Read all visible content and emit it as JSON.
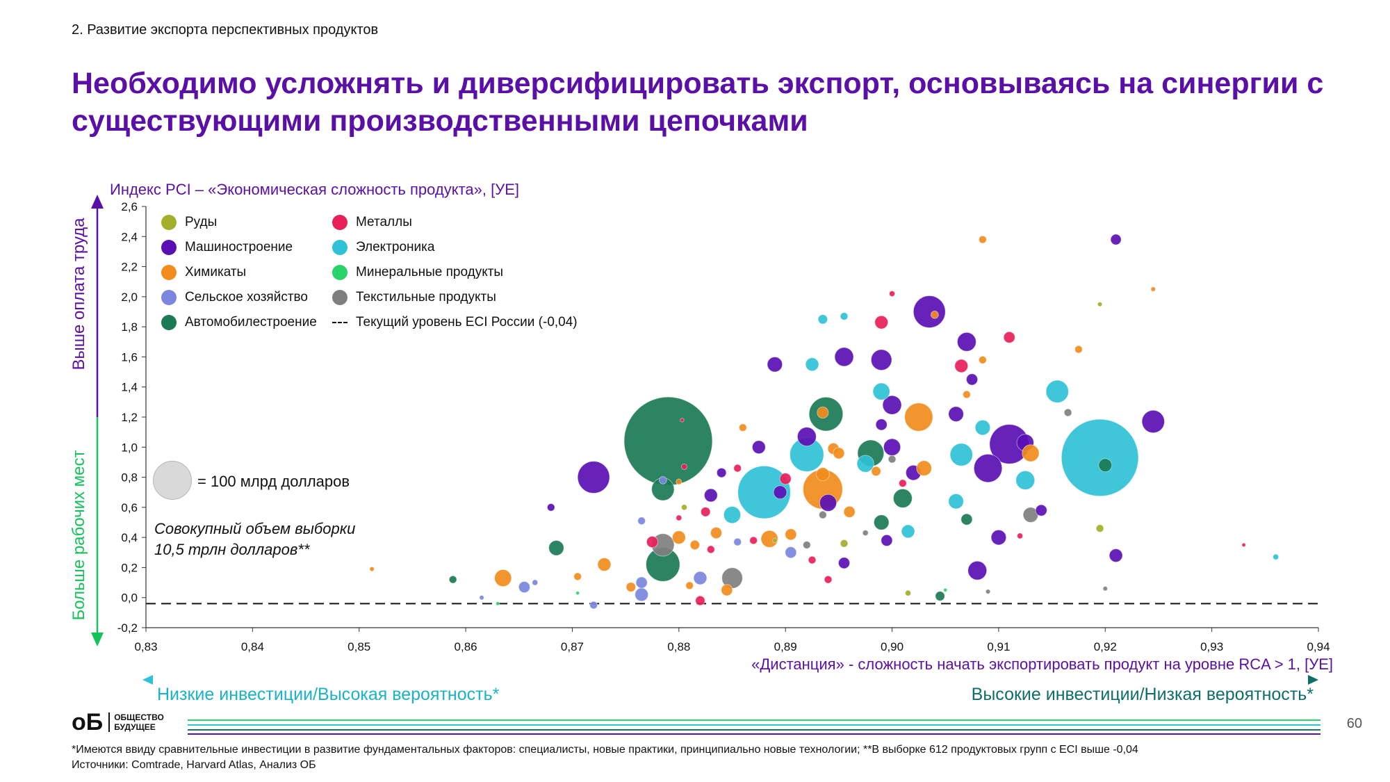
{
  "section": "2. Развитие экспорта перспективных продуктов",
  "title": "Необходимо усложнять и диверсифицировать экспорт, основываясь на синергии с существующими производственными цепочками",
  "side_top": "Выше оплата труда",
  "side_bottom": "Больше рабочих мест",
  "low_investment": "Низкие инвестиции/Высокая вероятность*",
  "high_investment": "Высокие инвестиции/Низкая вероятность*",
  "size_key_label": "= 100 млрд долларов",
  "sample_line1": "Совокупный объем выборки",
  "sample_line2": "10,5 трлн долларов**",
  "logo": {
    "mark": "оБ",
    "line1": "ОБЩЕСТВО",
    "line2": "БУДУЩЕЕ"
  },
  "page_number": "60",
  "footnote1": "*Имеются ввиду сравнительные инвестиции в развитие фундаментальных факторов: специалисты, новые практики, принципиально новые технологии; **В выборке 612 продуктовых групп с ECI выше -0,04",
  "footnote2": "Источники: Comtrade, Harvard Atlas, Анализ ОБ",
  "legend": [
    {
      "label": "Руды",
      "color": "#a3ae2a"
    },
    {
      "label": "Машиностроение",
      "color": "#5a0fb4"
    },
    {
      "label": "Химикаты",
      "color": "#f28c1c"
    },
    {
      "label": "Сельское хозяйство",
      "color": "#7b86dc"
    },
    {
      "label": "Автомобилестроение",
      "color": "#1a7a56"
    },
    {
      "label": "Металлы",
      "color": "#e8205a"
    },
    {
      "label": "Электроника",
      "color": "#2fc1d6"
    },
    {
      "label": "Минеральные продукты",
      "color": "#27d36a"
    },
    {
      "label": "Текстильные продукты",
      "color": "#7f7f7f"
    },
    {
      "label": "Текущий уровень ECI России (-0,04)",
      "color": "#111111"
    }
  ],
  "chart_data": {
    "type": "scatter",
    "subtype": "bubble",
    "title": "",
    "xlabel": "«Дистанция» - сложность начать экспортировать продукт на уровне RCA > 1, [УЕ]",
    "ylabel": "Индекс PCI – «Экономическая сложность продукта», [УЕ]",
    "xlim": [
      0.83,
      0.94
    ],
    "ylim": [
      -0.2,
      2.6
    ],
    "xticks": [
      "0,83",
      "0,84",
      "0,85",
      "0,86",
      "0,87",
      "0,88",
      "0,89",
      "0,90",
      "0,91",
      "0,92",
      "0,93",
      "0,94"
    ],
    "yticks": [
      "-0,2",
      "0,0",
      "0,2",
      "0,4",
      "0,6",
      "0,8",
      "1,0",
      "1,2",
      "1,4",
      "1,6",
      "1,8",
      "2,0",
      "2,2",
      "2,4",
      "2,6"
    ],
    "reference_line": {
      "y": -0.04,
      "label": "Текущий уровень ECI России (-0,04)"
    },
    "size_unit": "radius relative to 100 млрд долларов bubble",
    "series": [
      {
        "name": "Автомобилестроение",
        "color": "#1a7a56",
        "points": [
          [
            0.879,
            1.04,
            2.35
          ],
          [
            0.8785,
            0.72,
            0.6
          ],
          [
            0.8785,
            0.22,
            0.9
          ],
          [
            0.8938,
            1.22,
            0.9
          ],
          [
            0.898,
            0.96,
            0.7
          ],
          [
            0.901,
            0.66,
            0.5
          ],
          [
            0.899,
            0.5,
            0.4
          ],
          [
            0.8685,
            0.33,
            0.4
          ],
          [
            0.907,
            0.52,
            0.3
          ],
          [
            0.92,
            0.88,
            0.35
          ],
          [
            0.8588,
            0.12,
            0.2
          ],
          [
            0.9045,
            0.01,
            0.25
          ]
        ]
      },
      {
        "name": "Электроника",
        "color": "#2fc1d6",
        "points": [
          [
            0.9195,
            0.93,
            2.05
          ],
          [
            0.888,
            0.7,
            1.4
          ],
          [
            0.892,
            0.95,
            0.9
          ],
          [
            0.9155,
            1.37,
            0.6
          ],
          [
            0.9125,
            0.78,
            0.5
          ],
          [
            0.899,
            1.37,
            0.45
          ],
          [
            0.8925,
            1.55,
            0.35
          ],
          [
            0.885,
            0.55,
            0.45
          ],
          [
            0.906,
            0.64,
            0.4
          ],
          [
            0.9015,
            0.44,
            0.35
          ],
          [
            0.8935,
            1.85,
            0.25
          ],
          [
            0.8955,
            1.87,
            0.2
          ],
          [
            0.936,
            0.27,
            0.15
          ],
          [
            0.8975,
            0.89,
            0.45
          ],
          [
            0.9065,
            0.95,
            0.6
          ],
          [
            0.9085,
            1.13,
            0.4
          ]
        ]
      },
      {
        "name": "Машиностроение",
        "color": "#5a0fb4",
        "points": [
          [
            0.911,
            1.02,
            1.05
          ],
          [
            0.9035,
            1.9,
            0.85
          ],
          [
            0.909,
            0.86,
            0.75
          ],
          [
            0.907,
            1.7,
            0.5
          ],
          [
            0.872,
            0.8,
            0.85
          ],
          [
            0.899,
            1.58,
            0.55
          ],
          [
            0.8955,
            1.6,
            0.5
          ],
          [
            0.9245,
            1.17,
            0.6
          ],
          [
            0.921,
            2.38,
            0.28
          ],
          [
            0.908,
            0.18,
            0.5
          ],
          [
            0.9,
            1.28,
            0.5
          ],
          [
            0.892,
            1.07,
            0.5
          ],
          [
            0.9,
            1.0,
            0.45
          ],
          [
            0.894,
            0.63,
            0.45
          ],
          [
            0.902,
            0.83,
            0.4
          ],
          [
            0.8895,
            0.7,
            0.35
          ],
          [
            0.883,
            0.68,
            0.35
          ],
          [
            0.8875,
            1.0,
            0.35
          ],
          [
            0.91,
            0.4,
            0.4
          ],
          [
            0.921,
            0.28,
            0.35
          ],
          [
            0.8955,
            0.23,
            0.3
          ],
          [
            0.8995,
            0.38,
            0.3
          ],
          [
            0.889,
            1.55,
            0.4
          ],
          [
            0.9075,
            1.45,
            0.3
          ],
          [
            0.906,
            1.22,
            0.4
          ],
          [
            0.9125,
            1.03,
            0.45
          ],
          [
            0.884,
            0.83,
            0.25
          ],
          [
            0.868,
            0.6,
            0.2
          ],
          [
            0.899,
            1.15,
            0.3
          ],
          [
            0.914,
            0.58,
            0.3
          ]
        ]
      },
      {
        "name": "Химикаты",
        "color": "#f28c1c",
        "points": [
          [
            0.8935,
            0.72,
            1.05
          ],
          [
            0.9025,
            1.2,
            0.75
          ],
          [
            0.8885,
            0.39,
            0.45
          ],
          [
            0.873,
            0.22,
            0.35
          ],
          [
            0.8635,
            0.13,
            0.45
          ],
          [
            0.903,
            0.86,
            0.4
          ],
          [
            0.88,
            0.4,
            0.35
          ],
          [
            0.8945,
            0.99,
            0.3
          ],
          [
            0.9085,
            2.38,
            0.2
          ],
          [
            0.913,
            0.96,
            0.45
          ],
          [
            0.9085,
            1.58,
            0.2
          ],
          [
            0.896,
            0.57,
            0.3
          ],
          [
            0.8905,
            0.42,
            0.3
          ],
          [
            0.904,
            1.88,
            0.2
          ],
          [
            0.8935,
            1.23,
            0.3
          ],
          [
            0.907,
            1.35,
            0.2
          ],
          [
            0.8985,
            0.84,
            0.25
          ],
          [
            0.886,
            1.13,
            0.2
          ],
          [
            0.8845,
            0.05,
            0.3
          ],
          [
            0.9175,
            1.65,
            0.2
          ],
          [
            0.9245,
            2.05,
            0.12
          ],
          [
            0.88,
            0.77,
            0.15
          ],
          [
            0.8935,
            0.82,
            0.35
          ],
          [
            0.8835,
            0.43,
            0.3
          ],
          [
            0.8815,
            0.35,
            0.25
          ],
          [
            0.895,
            0.96,
            0.3
          ],
          [
            0.8755,
            0.07,
            0.25
          ],
          [
            0.881,
            0.08,
            0.2
          ],
          [
            0.8705,
            0.14,
            0.2
          ],
          [
            0.8512,
            0.19,
            0.12
          ]
        ]
      },
      {
        "name": "Металлы",
        "color": "#e8205a",
        "points": [
          [
            0.899,
            1.83,
            0.35
          ],
          [
            0.9065,
            1.54,
            0.35
          ],
          [
            0.911,
            1.73,
            0.3
          ],
          [
            0.8775,
            0.37,
            0.3
          ],
          [
            0.8825,
            0.57,
            0.25
          ],
          [
            0.882,
            -0.02,
            0.25
          ],
          [
            0.894,
            0.12,
            0.2
          ],
          [
            0.89,
            0.79,
            0.3
          ],
          [
            0.8925,
            0.25,
            0.2
          ],
          [
            0.8855,
            0.86,
            0.2
          ],
          [
            0.9,
            2.02,
            0.15
          ],
          [
            0.901,
            0.76,
            0.2
          ],
          [
            0.887,
            0.38,
            0.2
          ],
          [
            0.88,
            0.53,
            0.15
          ],
          [
            0.8803,
            1.18,
            0.1
          ],
          [
            0.933,
            0.35,
            0.1
          ],
          [
            0.912,
            0.41,
            0.15
          ],
          [
            0.883,
            0.32,
            0.2
          ],
          [
            0.8805,
            0.87,
            0.15
          ]
        ]
      },
      {
        "name": "Сельское хозяйство",
        "color": "#7b86dc",
        "points": [
          [
            0.8765,
            0.1,
            0.3
          ],
          [
            0.8765,
            0.02,
            0.35
          ],
          [
            0.8655,
            0.07,
            0.3
          ],
          [
            0.8905,
            0.3,
            0.3
          ],
          [
            0.882,
            0.13,
            0.35
          ],
          [
            0.8855,
            0.37,
            0.2
          ],
          [
            0.8765,
            0.51,
            0.2
          ],
          [
            0.8785,
            0.78,
            0.2
          ],
          [
            0.872,
            -0.05,
            0.2
          ],
          [
            0.8615,
            0.0,
            0.12
          ],
          [
            0.8665,
            0.1,
            0.15
          ]
        ]
      },
      {
        "name": "Текстильные продукты",
        "color": "#7f7f7f",
        "points": [
          [
            0.8785,
            0.35,
            0.6
          ],
          [
            0.885,
            0.13,
            0.55
          ],
          [
            0.913,
            0.55,
            0.4
          ],
          [
            0.9165,
            1.23,
            0.2
          ],
          [
            0.9,
            0.92,
            0.2
          ],
          [
            0.8935,
            0.55,
            0.2
          ],
          [
            0.892,
            0.35,
            0.2
          ],
          [
            0.8975,
            0.43,
            0.15
          ],
          [
            0.92,
            0.06,
            0.12
          ],
          [
            0.909,
            0.04,
            0.12
          ]
        ]
      },
      {
        "name": "Руды",
        "color": "#a3ae2a",
        "points": [
          [
            0.9195,
            0.46,
            0.2
          ],
          [
            0.8955,
            0.36,
            0.2
          ],
          [
            0.9195,
            1.95,
            0.12
          ],
          [
            0.8805,
            0.6,
            0.15
          ],
          [
            0.889,
            0.38,
            0.12
          ],
          [
            0.9015,
            0.03,
            0.15
          ]
        ]
      },
      {
        "name": "Минеральные продукты",
        "color": "#27d36a",
        "points": [
          [
            0.8705,
            0.03,
            0.08
          ],
          [
            0.863,
            -0.04,
            0.08
          ],
          [
            0.905,
            0.05,
            0.08
          ]
        ]
      }
    ]
  }
}
